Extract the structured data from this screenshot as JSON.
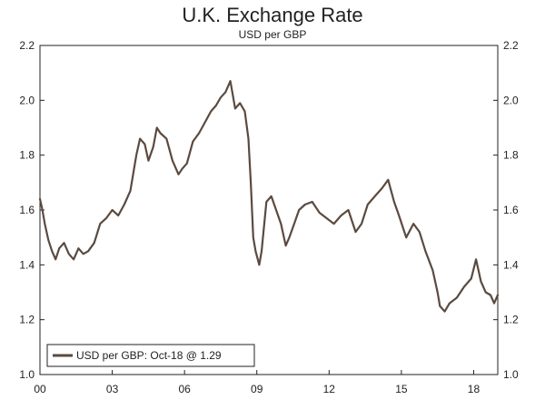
{
  "chart_data": {
    "type": "line",
    "title": "U.K. Exchange Rate",
    "subtitle": "USD per GBP",
    "xlabel": "",
    "ylabel": "",
    "xlim": [
      2000.0,
      2019.0
    ],
    "ylim": [
      1.0,
      2.2
    ],
    "yticks": [
      1.0,
      1.2,
      1.4,
      1.6,
      1.8,
      2.0,
      2.2
    ],
    "ytick_labels": [
      "1.0",
      "1.2",
      "1.4",
      "1.6",
      "1.8",
      "2.0",
      "2.2"
    ],
    "xticks": [
      2000,
      2003,
      2006,
      2009,
      2012,
      2015,
      2018
    ],
    "xtick_labels": [
      "00",
      "03",
      "06",
      "09",
      "12",
      "15",
      "18"
    ],
    "grid": false,
    "legend_placement": "bottom-left",
    "colors": {
      "line": "#5b4a3f",
      "frame": "#222222",
      "legend_border": "#222222"
    },
    "series": [
      {
        "name": "USD per GBP: Oct-18 @ 1.29",
        "x": [
          2000.0,
          2000.1,
          2000.2,
          2000.35,
          2000.5,
          2000.65,
          2000.8,
          2001.0,
          2001.2,
          2001.4,
          2001.6,
          2001.8,
          2002.0,
          2002.25,
          2002.5,
          2002.75,
          2003.0,
          2003.25,
          2003.5,
          2003.75,
          2004.0,
          2004.15,
          2004.35,
          2004.5,
          2004.7,
          2004.85,
          2005.0,
          2005.25,
          2005.5,
          2005.75,
          2005.9,
          2006.1,
          2006.35,
          2006.6,
          2006.85,
          2007.1,
          2007.3,
          2007.5,
          2007.7,
          2007.9,
          2008.1,
          2008.3,
          2008.5,
          2008.65,
          2008.75,
          2008.85,
          2008.95,
          2009.1,
          2009.2,
          2009.4,
          2009.6,
          2009.8,
          2010.0,
          2010.2,
          2010.35,
          2010.55,
          2010.75,
          2011.0,
          2011.3,
          2011.6,
          2011.9,
          2012.2,
          2012.5,
          2012.8,
          2013.1,
          2013.35,
          2013.6,
          2013.9,
          2014.2,
          2014.45,
          2014.7,
          2014.9,
          2015.2,
          2015.5,
          2015.75,
          2016.0,
          2016.3,
          2016.5,
          2016.6,
          2016.8,
          2017.0,
          2017.3,
          2017.6,
          2017.9,
          2018.1,
          2018.3,
          2018.5,
          2018.7,
          2018.85,
          2019.0
        ],
        "values": [
          1.64,
          1.6,
          1.55,
          1.49,
          1.45,
          1.42,
          1.46,
          1.48,
          1.44,
          1.42,
          1.46,
          1.44,
          1.45,
          1.48,
          1.55,
          1.57,
          1.6,
          1.58,
          1.62,
          1.67,
          1.8,
          1.86,
          1.84,
          1.78,
          1.83,
          1.9,
          1.88,
          1.86,
          1.78,
          1.73,
          1.75,
          1.77,
          1.85,
          1.88,
          1.92,
          1.96,
          1.98,
          2.01,
          2.03,
          2.07,
          1.97,
          1.99,
          1.96,
          1.86,
          1.7,
          1.5,
          1.45,
          1.4,
          1.45,
          1.63,
          1.65,
          1.6,
          1.55,
          1.47,
          1.5,
          1.55,
          1.6,
          1.62,
          1.63,
          1.59,
          1.57,
          1.55,
          1.58,
          1.6,
          1.52,
          1.55,
          1.62,
          1.65,
          1.68,
          1.71,
          1.63,
          1.58,
          1.5,
          1.55,
          1.52,
          1.45,
          1.38,
          1.3,
          1.25,
          1.23,
          1.26,
          1.28,
          1.32,
          1.35,
          1.42,
          1.34,
          1.3,
          1.29,
          1.26,
          1.29
        ]
      }
    ]
  }
}
